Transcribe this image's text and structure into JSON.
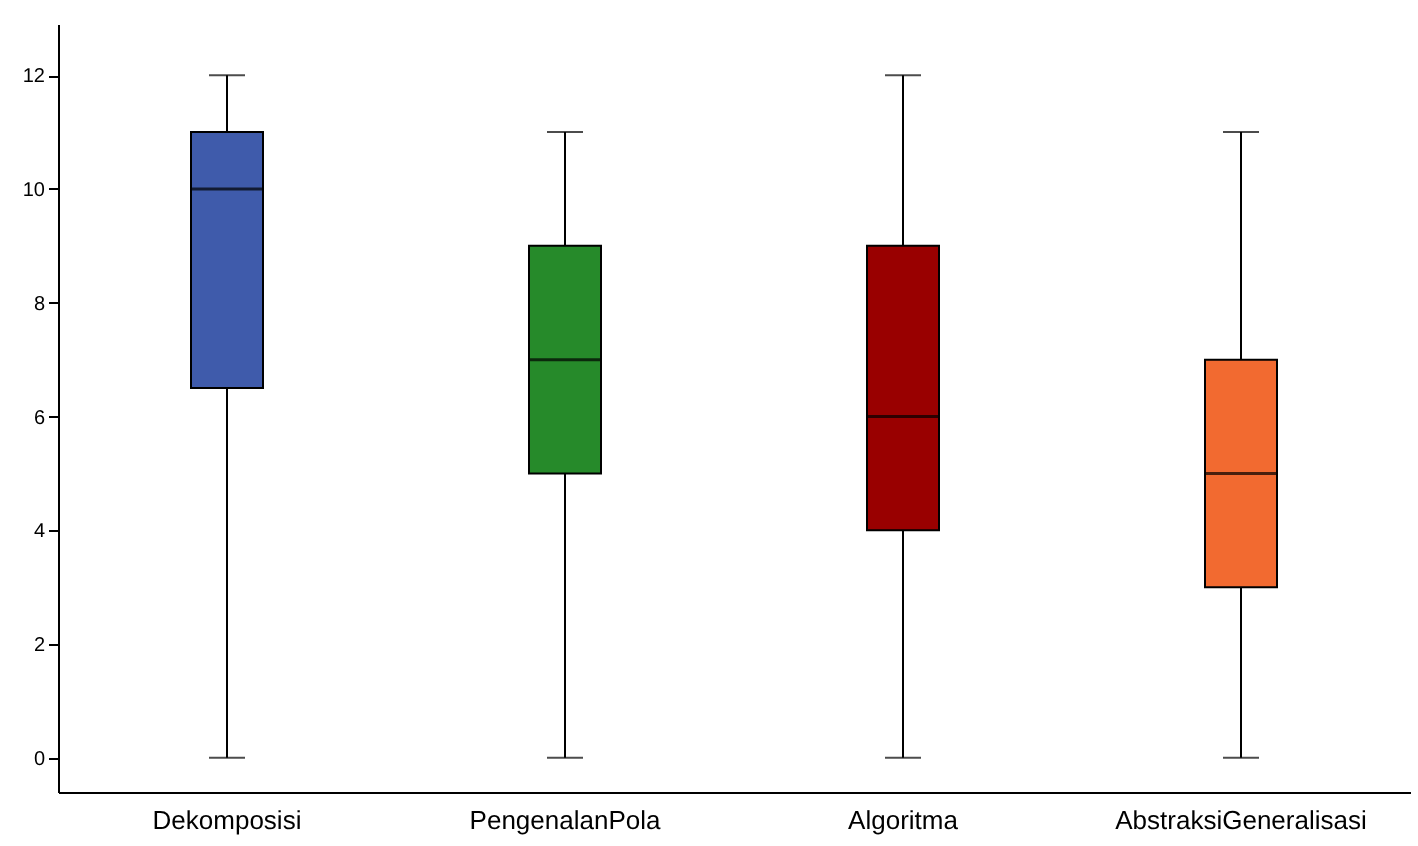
{
  "chart_data": {
    "type": "box",
    "categories": [
      "Dekomposisi",
      "PengenalanPola",
      "Algoritma",
      "AbstraksiGeneralisasi"
    ],
    "boxes": [
      {
        "low": 0,
        "q1": 6.5,
        "median": 10,
        "q3": 11,
        "high": 12
      },
      {
        "low": 0,
        "q1": 5,
        "median": 7,
        "q3": 9,
        "high": 11
      },
      {
        "low": 0,
        "q1": 4,
        "median": 6,
        "q3": 9,
        "high": 12
      },
      {
        "low": 0,
        "q1": 3,
        "median": 5,
        "q3": 7,
        "high": 11
      }
    ],
    "colors": [
      "#3f5bab",
      "#268a2a",
      "#990000",
      "#f26a30"
    ],
    "ylim": [
      -0.6,
      12.9
    ],
    "yticks": [
      0,
      2,
      4,
      6,
      8,
      10,
      12
    ],
    "grid": false
  }
}
